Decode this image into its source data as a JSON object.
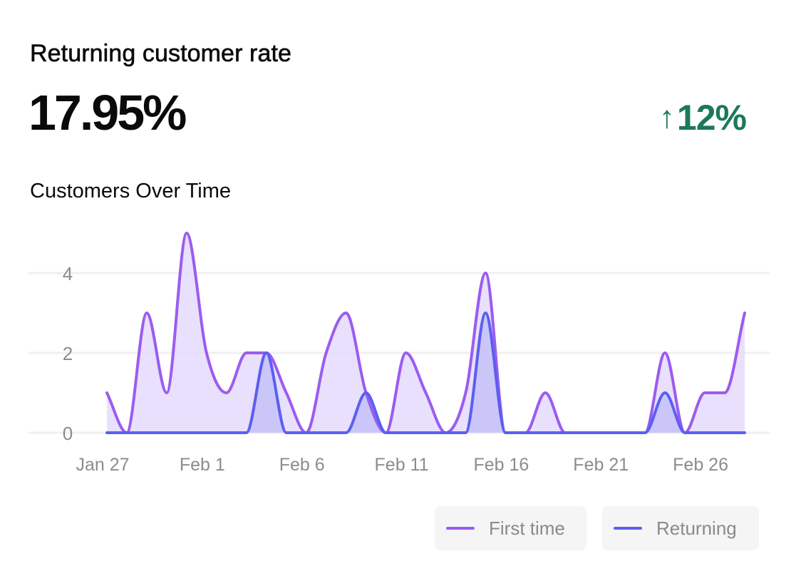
{
  "card": {
    "title": "Returning customer rate",
    "value": "17.95%",
    "delta": "12%",
    "delta_icon": "arrow-up-icon",
    "delta_color": "#1a7a5a"
  },
  "chart_data": {
    "type": "area",
    "title": "Customers Over Time",
    "xlabel": "",
    "ylabel": "",
    "x": [
      "Jan 27",
      "Jan 28",
      "Jan 29",
      "Jan 30",
      "Jan 31",
      "Feb 1",
      "Feb 2",
      "Feb 3",
      "Feb 4",
      "Feb 5",
      "Feb 6",
      "Feb 7",
      "Feb 8",
      "Feb 9",
      "Feb 10",
      "Feb 11",
      "Feb 12",
      "Feb 13",
      "Feb 14",
      "Feb 15",
      "Feb 16",
      "Feb 17",
      "Feb 18",
      "Feb 19",
      "Feb 20",
      "Feb 21",
      "Feb 22",
      "Feb 23",
      "Feb 24",
      "Feb 25",
      "Feb 26",
      "Feb 27",
      "Feb 28"
    ],
    "x_ticks": [
      "Jan 27",
      "Feb 1",
      "Feb 6",
      "Feb 11",
      "Feb 16",
      "Feb 21",
      "Feb 26"
    ],
    "y_ticks": [
      0,
      2,
      4
    ],
    "ylim": [
      0,
      5
    ],
    "grid": true,
    "legend_position": "bottom-right",
    "series": [
      {
        "name": "First time",
        "color": "#9b5cf0",
        "fill": "#e4dafb",
        "values": [
          1,
          0,
          3,
          1,
          5,
          2,
          1,
          2,
          2,
          1,
          0,
          2,
          3,
          1,
          0,
          2,
          1,
          0,
          1,
          4,
          0,
          0,
          1,
          0,
          0,
          0,
          0,
          0,
          2,
          0,
          1,
          1,
          3
        ]
      },
      {
        "name": "Returning",
        "color": "#5b5ff0",
        "fill": "#c8c3f7",
        "values": [
          0,
          0,
          0,
          0,
          0,
          0,
          0,
          0,
          2,
          0,
          0,
          0,
          0,
          1,
          0,
          0,
          0,
          0,
          0,
          3,
          0,
          0,
          0,
          0,
          0,
          0,
          0,
          0,
          1,
          0,
          0,
          0,
          0
        ]
      }
    ]
  }
}
